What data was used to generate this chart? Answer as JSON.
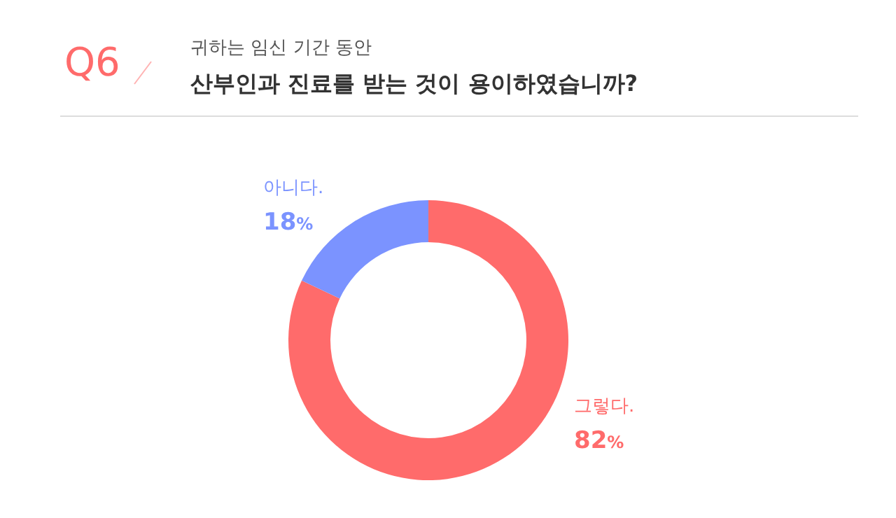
{
  "chart_data": {
    "type": "donut",
    "annotations": [
      "Q6"
    ],
    "subtitle": "귀하는 임신 기간 동안",
    "title": "산부인과 진료를 받는 것이 용이하였습니까?",
    "categories": [
      "그렇다.",
      "아니다."
    ],
    "values": [
      82,
      18
    ],
    "colors": [
      "#ff6b6b",
      "#7b93ff"
    ],
    "value_labels": [
      "82%",
      "18%"
    ]
  }
}
